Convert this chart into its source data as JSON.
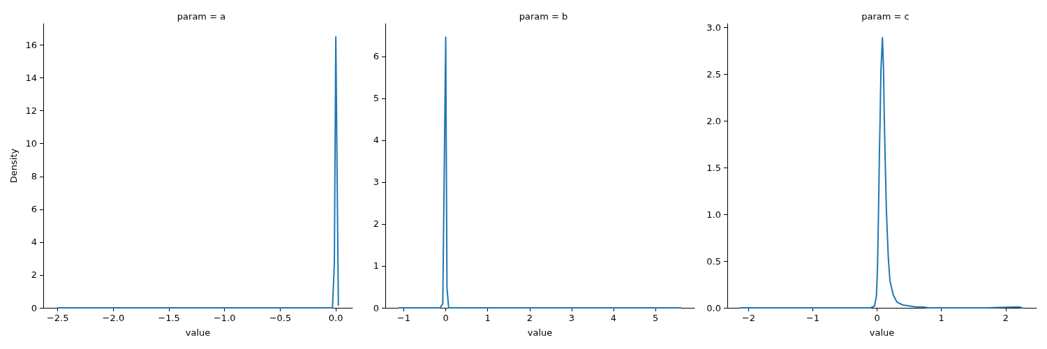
{
  "chart_data": [
    {
      "type": "line",
      "title": "param = a",
      "xlabel": "value",
      "ylabel": "Density",
      "color": "#1f77b4",
      "marker": "none",
      "grid": false,
      "x": [
        -2.5,
        -1.5,
        -0.5,
        -0.03,
        -0.013,
        0,
        0.023
      ],
      "values": [
        0,
        0,
        0,
        0,
        2.7,
        16.5,
        0.16
      ],
      "xlim": [
        -2.63,
        0.15
      ],
      "ylim": [
        0,
        17.3
      ],
      "xticks": [
        {
          "value": -2.5,
          "label": "−2.5"
        },
        {
          "value": -2,
          "label": "−2.0"
        },
        {
          "value": -1.5,
          "label": "−1.5"
        },
        {
          "value": -1,
          "label": "−1.0"
        },
        {
          "value": -0.5,
          "label": "−0.5"
        },
        {
          "value": 0,
          "label": "0.0"
        }
      ],
      "yticks": [
        0,
        2,
        4,
        6,
        8,
        10,
        12,
        14,
        16
      ]
    },
    {
      "type": "line",
      "title": "param = b",
      "xlabel": "value",
      "color": "#1f77b4",
      "marker": "none",
      "grid": false,
      "x": [
        -1.11,
        -0.5,
        -0.13,
        -0.1,
        -0.07,
        0,
        0.03,
        0.07,
        1,
        3,
        5.6
      ],
      "values": [
        0,
        0,
        0,
        0.05,
        0.1,
        6.46,
        0.48,
        0,
        0,
        0,
        0
      ],
      "xlim": [
        -1.44,
        5.93
      ],
      "ylim": [
        0,
        6.78
      ],
      "xticks": [
        {
          "value": -1,
          "label": "−1"
        },
        0,
        1,
        2,
        3,
        4,
        5
      ],
      "yticks": [
        0,
        1,
        2,
        3,
        4,
        5,
        6
      ]
    },
    {
      "type": "line",
      "title": "param = c",
      "xlabel": "value",
      "color": "#1f77b4",
      "marker": "none",
      "grid": false,
      "x": [
        -2.13,
        -1.5,
        -1,
        -0.5,
        -0.1,
        -0.04,
        -0.01,
        0.007,
        0.022,
        0.036,
        0.047,
        0.06,
        0.083,
        0.1,
        0.11,
        0.125,
        0.145,
        0.174,
        0.2,
        0.25,
        0.31,
        0.4,
        0.5,
        0.6,
        0.7,
        0.8,
        1.2,
        1.7,
        2.2,
        2.26
      ],
      "values": [
        0,
        0,
        0,
        0,
        0,
        0.02,
        0.13,
        0.45,
        1.03,
        1.65,
        2.03,
        2.55,
        2.89,
        2.55,
        2.1,
        1.6,
        1.03,
        0.54,
        0.29,
        0.14,
        0.06,
        0.03,
        0.02,
        0.01,
        0.01,
        0,
        0,
        0,
        0.01,
        0
      ],
      "xlim": [
        -2.33,
        2.48
      ],
      "ylim": [
        0,
        3.04
      ],
      "xticks": [
        {
          "value": -2,
          "label": "−2"
        },
        {
          "value": -1,
          "label": "−1"
        },
        0,
        1,
        2
      ],
      "yticks": [
        {
          "value": 0,
          "label": "0.0"
        },
        0.5,
        {
          "value": 1,
          "label": "1.0"
        },
        1.5,
        {
          "value": 2,
          "label": "2.0"
        },
        2.5,
        {
          "value": 3,
          "label": "3.0"
        }
      ]
    }
  ]
}
